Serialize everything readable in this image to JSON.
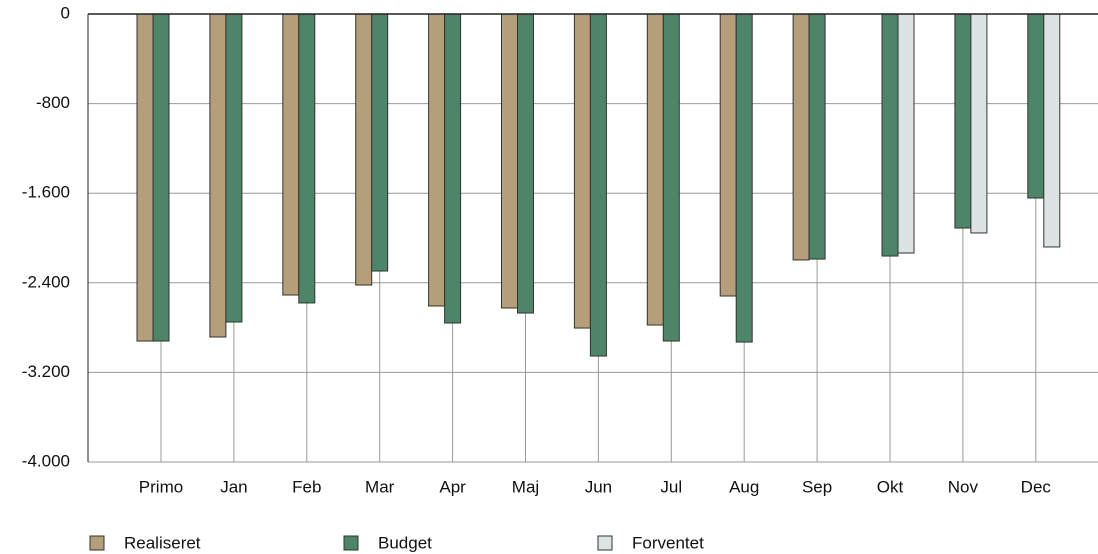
{
  "chart_data": {
    "type": "bar",
    "categories": [
      "Primo",
      "Jan",
      "Feb",
      "Mar",
      "Apr",
      "Maj",
      "Jun",
      "Jul",
      "Aug",
      "Sep",
      "Okt",
      "Nov",
      "Dec"
    ],
    "series": [
      {
        "name": "Realiseret",
        "color": "#b59e7a",
        "values": [
          -2920,
          -2884,
          -2509,
          -2420,
          -2607,
          -2625,
          -2804,
          -2777,
          -2518,
          -2196,
          null,
          null,
          null
        ]
      },
      {
        "name": "Budget",
        "color": "#4e8468",
        "values": [
          -2920,
          -2750,
          -2580,
          -2295,
          -2759,
          -2670,
          -3054,
          -2920,
          -2929,
          -2188,
          -2161,
          -1911,
          -1643
        ]
      },
      {
        "name": "Forventet",
        "color": "#dde3e2",
        "values": [
          null,
          null,
          null,
          null,
          null,
          null,
          null,
          null,
          null,
          null,
          -2134,
          -1955,
          -2080
        ]
      }
    ],
    "ylim": [
      -4000,
      0
    ],
    "yticks": [
      0,
      -800,
      {
        "value": -1600,
        "label": "-1.600"
      },
      {
        "value": -2400,
        "label": "-2.400"
      },
      {
        "value": -3200,
        "label": "-3.200"
      },
      {
        "value": -4000,
        "label": "-4.000"
      }
    ],
    "grid": true
  }
}
